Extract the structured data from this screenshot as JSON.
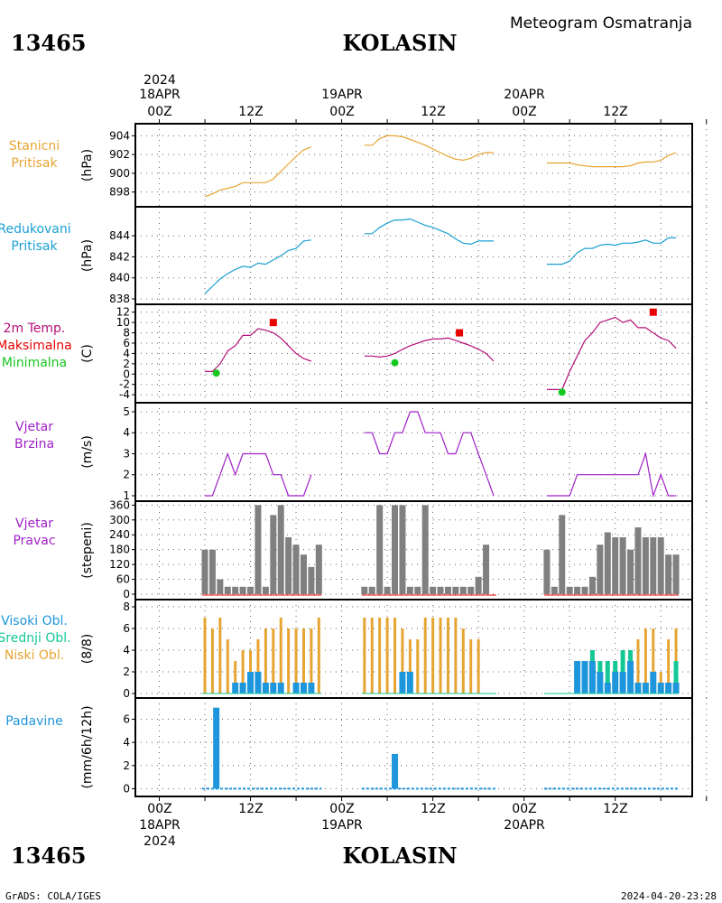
{
  "station": {
    "id": "13465",
    "name": "KOLASIN"
  },
  "header": {
    "title": "Meteogram Osmatranja"
  },
  "footer": {
    "left": "GrADS: COLA/IGES",
    "right": "2024-04-20-23:28"
  },
  "time_axis": {
    "year": "2024",
    "days": [
      {
        "label": "18APR",
        "hour": "00Z"
      },
      {
        "label": "19APR",
        "hour": "00Z"
      },
      {
        "label": "20APR",
        "hour": "00Z"
      }
    ],
    "midday": "12Z"
  },
  "colors": {
    "pressure": "#e6a532",
    "reduced": "#1aa0d2",
    "temp": "#b4107a",
    "max": "#e80000",
    "min": "#14c81e",
    "wind": "#a020c8",
    "dir_bar": "#808080",
    "cloud_high": "#1e96dc",
    "cloud_mid": "#14c896",
    "cloud_low": "#e6a532",
    "precip": "#1e96dc"
  },
  "chart_data": [
    {
      "type": "line",
      "panel": "stanicni-pritisak",
      "label_lines": [
        "Stanicni",
        "Pritisak"
      ],
      "ylabel": "(hPa)",
      "ylim": [
        897,
        905
      ],
      "yticks": [
        898,
        900,
        902,
        904
      ],
      "x_unit": "hours since 18APR 00Z",
      "segments": [
        {
          "x": [
            6,
            7,
            8,
            9,
            10,
            11,
            12,
            13,
            14,
            15,
            16,
            17,
            18,
            19,
            20
          ],
          "y": [
            897.5,
            897.8,
            898.2,
            898.4,
            898.6,
            899.0,
            899.0,
            899.0,
            899.0,
            899.4,
            900.2,
            901.0,
            901.8,
            902.5,
            902.8
          ]
        },
        {
          "x": [
            27,
            28,
            29,
            30,
            31,
            32,
            33,
            34,
            35,
            36,
            37,
            38,
            39,
            40,
            41,
            42,
            43,
            44
          ],
          "y": [
            903.0,
            903.0,
            903.7,
            904.0,
            904.0,
            903.9,
            903.6,
            903.3,
            903.0,
            902.6,
            902.2,
            901.8,
            901.5,
            901.4,
            901.6,
            902.0,
            902.2,
            902.2
          ]
        },
        {
          "x": [
            51,
            52,
            53,
            54,
            55,
            56,
            57,
            58,
            59,
            60,
            61,
            62,
            63,
            64,
            65,
            66,
            67,
            68
          ],
          "y": [
            901.1,
            901.1,
            901.1,
            901.1,
            900.9,
            900.8,
            900.7,
            900.7,
            900.7,
            900.7,
            900.7,
            900.8,
            901.1,
            901.2,
            901.2,
            901.4,
            901.9,
            902.2
          ]
        }
      ]
    },
    {
      "type": "line",
      "panel": "redukovani-pritisak",
      "label_lines": [
        "Redukovani",
        "Pritisak"
      ],
      "ylabel": "(hPa)",
      "ylim": [
        838,
        846.5
      ],
      "yticks": [
        838,
        840,
        842,
        844
      ],
      "x_unit": "hours since 18APR 00Z",
      "segments": [
        {
          "x": [
            6,
            7,
            8,
            9,
            10,
            11,
            12,
            13,
            14,
            15,
            16,
            17,
            18,
            19,
            20
          ],
          "y": [
            838.5,
            839.2,
            839.9,
            840.4,
            840.8,
            841.1,
            841.0,
            841.4,
            841.3,
            841.7,
            842.1,
            842.6,
            842.8,
            843.5,
            843.6
          ]
        },
        {
          "x": [
            27,
            28,
            29,
            30,
            31,
            32,
            33,
            34,
            35,
            36,
            37,
            38,
            39,
            40,
            41,
            42,
            43,
            44
          ],
          "y": [
            844.2,
            844.2,
            844.8,
            845.2,
            845.5,
            845.5,
            845.6,
            845.3,
            845.0,
            844.8,
            844.5,
            844.2,
            843.7,
            843.3,
            843.2,
            843.5,
            843.5,
            843.5
          ]
        },
        {
          "x": [
            51,
            52,
            53,
            54,
            55,
            56,
            57,
            58,
            59,
            60,
            61,
            62,
            63,
            64,
            65,
            66,
            67,
            68
          ],
          "y": [
            841.3,
            841.3,
            841.3,
            841.6,
            842.4,
            842.8,
            842.8,
            843.1,
            843.2,
            843.1,
            843.3,
            843.3,
            843.4,
            843.6,
            843.3,
            843.3,
            843.8,
            843.8
          ]
        }
      ]
    },
    {
      "type": "line",
      "panel": "temperatura",
      "label_lines": [
        "2m Temp.",
        "Maksimalna",
        "Minimalna"
      ],
      "ylabel": "(C)",
      "ylim": [
        -4.5,
        13
      ],
      "yticks": [
        -4,
        -2,
        0,
        2,
        4,
        6,
        8,
        10,
        12
      ],
      "x_unit": "hours since 18APR 00Z",
      "segments": [
        {
          "x": [
            6,
            7,
            8,
            9,
            10,
            11,
            12,
            13,
            14,
            15,
            16,
            17,
            18,
            19,
            20
          ],
          "y": [
            0.5,
            0.5,
            2.0,
            4.5,
            5.5,
            7.5,
            7.5,
            8.8,
            8.5,
            8.0,
            7.0,
            5.5,
            4.0,
            3.0,
            2.5
          ]
        },
        {
          "x": [
            27,
            28,
            29,
            30,
            31,
            32,
            33,
            34,
            35,
            36,
            37,
            38,
            39,
            40,
            41,
            42,
            43,
            44
          ],
          "y": [
            3.5,
            3.5,
            3.3,
            3.5,
            4.0,
            4.8,
            5.5,
            6.0,
            6.5,
            6.8,
            6.8,
            7.0,
            6.5,
            6.0,
            5.5,
            4.8,
            4.0,
            2.5
          ]
        },
        {
          "x": [
            51,
            52,
            53,
            54,
            55,
            56,
            57,
            58,
            59,
            60,
            61,
            62,
            63,
            64,
            65,
            66,
            67,
            68
          ],
          "y": [
            -3.0,
            -3.0,
            -3.0,
            0.5,
            3.5,
            6.5,
            8.0,
            10.0,
            10.5,
            11.0,
            10.0,
            10.5,
            9.0,
            9.0,
            8.0,
            7.0,
            6.5,
            5.0
          ]
        }
      ],
      "maximum": {
        "x": [
          15,
          39.5,
          65
        ],
        "y": [
          10,
          8,
          12
        ]
      },
      "minimum": {
        "x": [
          7.5,
          31,
          53
        ],
        "y": [
          0.2,
          2.2,
          -3.5
        ]
      }
    },
    {
      "type": "line",
      "panel": "vjetar-brzina",
      "label_lines": [
        "Vjetar",
        "Brzina"
      ],
      "ylabel": "(m/s)",
      "ylim": [
        1,
        5.3
      ],
      "yticks": [
        1,
        2,
        3,
        4,
        5
      ],
      "x_unit": "hours since 18APR 00Z",
      "segments": [
        {
          "x": [
            6,
            7,
            8,
            9,
            10,
            11,
            12,
            13,
            14,
            15,
            16,
            17,
            18,
            19,
            20
          ],
          "y": [
            1,
            1,
            2,
            3,
            2,
            3,
            3,
            3,
            3,
            2,
            2,
            1,
            1,
            1,
            2
          ]
        },
        {
          "x": [
            27,
            28,
            29,
            30,
            31,
            32,
            33,
            34,
            35,
            36,
            37,
            38,
            39,
            40,
            41,
            42,
            43,
            44
          ],
          "y": [
            4,
            4,
            3,
            3,
            4,
            4,
            5,
            5,
            4,
            4,
            4,
            3,
            3,
            4,
            4,
            3,
            2,
            1
          ]
        },
        {
          "x": [
            51,
            52,
            53,
            54,
            55,
            56,
            57,
            58,
            59,
            60,
            61,
            62,
            63,
            64,
            65,
            66,
            67,
            68
          ],
          "y": [
            1,
            1,
            1,
            1,
            2,
            2,
            2,
            2,
            2,
            2,
            2,
            2,
            2,
            3,
            1,
            2,
            1,
            1
          ]
        }
      ]
    },
    {
      "type": "bar",
      "panel": "vjetar-pravac",
      "label_lines": [
        "Vjetar",
        "Pravac"
      ],
      "ylabel": "(stepeni)",
      "ylim": [
        0,
        365
      ],
      "yticks": [
        0,
        60,
        120,
        180,
        240,
        300,
        360
      ],
      "x_unit": "hours since 18APR 00Z",
      "x": [
        6,
        7,
        8,
        9,
        10,
        11,
        12,
        13,
        14,
        15,
        16,
        17,
        18,
        19,
        20,
        21,
        27,
        28,
        29,
        30,
        31,
        32,
        33,
        34,
        35,
        36,
        37,
        38,
        39,
        40,
        41,
        42,
        43,
        44,
        51,
        52,
        53,
        54,
        55,
        56,
        57,
        58,
        59,
        60,
        61,
        62,
        63,
        64,
        65,
        66,
        67,
        68
      ],
      "values": [
        180,
        180,
        60,
        30,
        30,
        30,
        30,
        360,
        30,
        320,
        360,
        230,
        200,
        160,
        110,
        200,
        30,
        30,
        360,
        30,
        360,
        360,
        30,
        30,
        360,
        30,
        30,
        30,
        30,
        30,
        30,
        70,
        200,
        0,
        180,
        30,
        320,
        30,
        30,
        30,
        70,
        200,
        250,
        230,
        230,
        180,
        270,
        230,
        230,
        230,
        160,
        160
      ]
    },
    {
      "type": "bar",
      "panel": "oblaci",
      "label_lines": [
        "Visoki Obl.",
        "Srednji Obl.",
        "Niski Obl."
      ],
      "ylabel": "(8/8)",
      "ylim": [
        0,
        8.5
      ],
      "yticks": [
        0,
        2,
        4,
        6,
        8
      ],
      "x_unit": "hours since 18APR 00Z",
      "x": [
        6,
        7,
        8,
        9,
        10,
        11,
        12,
        13,
        14,
        15,
        16,
        17,
        18,
        19,
        20,
        21,
        27,
        28,
        29,
        30,
        31,
        32,
        33,
        34,
        35,
        36,
        37,
        38,
        39,
        40,
        41,
        42,
        43,
        44,
        51,
        52,
        53,
        54,
        55,
        56,
        57,
        58,
        59,
        60,
        61,
        62,
        63,
        64,
        65,
        66,
        67,
        68
      ],
      "series": [
        {
          "name": "Visoki Obl.",
          "values": [
            0,
            0,
            0,
            0,
            1,
            1,
            2,
            2,
            1,
            1,
            1,
            0,
            1,
            1,
            1,
            0,
            0,
            0,
            0,
            0,
            0,
            2,
            2,
            0,
            0,
            0,
            0,
            0,
            0,
            0,
            0,
            0,
            0,
            0,
            0,
            0,
            0,
            0,
            3,
            3,
            3,
            2,
            1,
            2,
            2,
            3,
            1,
            1,
            2,
            1,
            1,
            1
          ]
        },
        {
          "name": "Srednji Obl.",
          "values": [
            0,
            0,
            0,
            0,
            0,
            0,
            0,
            0,
            0,
            0,
            0,
            0,
            0,
            0,
            0,
            0,
            0,
            0,
            0,
            0,
            0,
            0,
            0,
            0,
            0,
            0,
            0,
            0,
            0,
            0,
            0,
            0,
            0,
            0,
            0,
            0,
            0,
            0,
            3,
            3,
            4,
            3,
            3,
            3,
            4,
            4,
            1,
            0,
            2,
            1,
            0,
            3
          ]
        },
        {
          "name": "Niski Obl.",
          "values": [
            7,
            6,
            7,
            5,
            3,
            4,
            4,
            5,
            6,
            6,
            7,
            6,
            6,
            6,
            6,
            7,
            7,
            7,
            7,
            7,
            7,
            6,
            5,
            5,
            7,
            7,
            7,
            7,
            7,
            6,
            5,
            5,
            0,
            0,
            0,
            0,
            0,
            0,
            1,
            1,
            1,
            1,
            1,
            1,
            1,
            1,
            5,
            6,
            6,
            2,
            5,
            6
          ]
        }
      ]
    },
    {
      "type": "bar",
      "panel": "padavine",
      "label_lines": [
        "Padavine"
      ],
      "ylabel": "(mm/6h/12h)",
      "ylim": [
        -0.2,
        7.6
      ],
      "yticks": [
        0,
        2,
        4,
        6
      ],
      "x_unit": "hours since 18APR 00Z",
      "x": [
        7.5,
        31
      ],
      "values": [
        7,
        3
      ]
    }
  ]
}
